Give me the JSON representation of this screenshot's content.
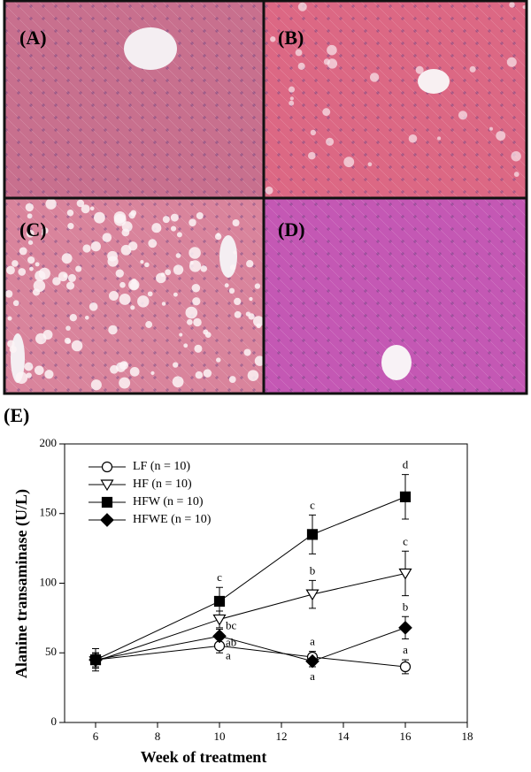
{
  "panels": [
    {
      "label": "(A)"
    },
    {
      "label": "(B)"
    },
    {
      "label": "(C)"
    },
    {
      "label": "(D)"
    }
  ],
  "chart_data": {
    "type": "line",
    "panel_label": "(E)",
    "x_label": "Week of treatment",
    "y_label": "Alanine transaminase  (U/L)",
    "x": [
      6,
      10,
      13,
      16
    ],
    "xlim": [
      5,
      18
    ],
    "xticks": [
      6,
      8,
      10,
      12,
      14,
      16,
      18
    ],
    "ylim": [
      0,
      200
    ],
    "yticks": [
      0,
      50,
      100,
      150,
      200
    ],
    "grid": false,
    "legend": "upper left",
    "series": [
      {
        "name": "LF (n = 10)",
        "marker": "circle",
        "filled": false,
        "color": "#000000",
        "values": [
          45,
          55,
          47,
          40
        ],
        "errors": [
          5,
          5,
          4,
          5
        ],
        "letters": [
          null,
          "a",
          "a",
          "a"
        ]
      },
      {
        "name": "HF (n = 10)",
        "marker": "triangle-down",
        "filled": false,
        "color": "#000000",
        "values": [
          44,
          74,
          92,
          107
        ],
        "errors": [
          5,
          6,
          10,
          16
        ],
        "letters": [
          null,
          "bc",
          "b",
          "c"
        ]
      },
      {
        "name": "HFW (n = 10)",
        "marker": "square",
        "filled": true,
        "color": "#000000",
        "values": [
          45,
          87,
          135,
          162
        ],
        "errors": [
          8,
          10,
          14,
          16
        ],
        "letters": [
          null,
          "c",
          "c",
          "d"
        ]
      },
      {
        "name": "HFWE (n = 10)",
        "marker": "diamond",
        "filled": true,
        "color": "#000000",
        "values": [
          45,
          62,
          44,
          68
        ],
        "errors": [
          5,
          5,
          4,
          8
        ],
        "letters": [
          null,
          "ab",
          "a",
          "b"
        ]
      }
    ]
  }
}
